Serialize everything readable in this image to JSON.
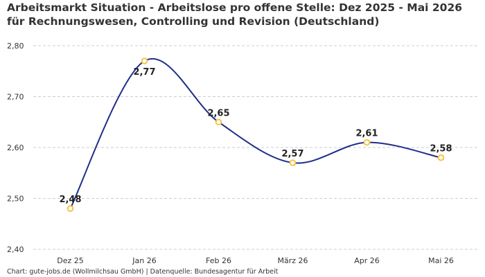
{
  "title": "Arbeitsmarkt Situation - Arbeitslose pro offene Stelle: Dez 2025 - Mai 2026 für Rechnungswesen, Controlling und Revision (Deutschland)",
  "footer": "Chart: gute-jobs.de (Wollmilchsau GmbH) | Datenquelle: Bundesagentur für Arbeit",
  "chart_data": {
    "type": "line",
    "title": "Arbeitsmarkt Situation - Arbeitslose pro offene Stelle: Dez 2025 - Mai 2026 für Rechnungswesen, Controlling und Revision (Deutschland)",
    "categories": [
      "Dez 25",
      "Jan 26",
      "Feb 26",
      "März 26",
      "Apr 26",
      "Mai 26"
    ],
    "values": [
      2.48,
      2.77,
      2.65,
      2.57,
      2.61,
      2.58
    ],
    "value_labels": [
      "2,48",
      "2,77",
      "2,65",
      "2,57",
      "2,61",
      "2,58"
    ],
    "y_ticks": [
      "2,40",
      "2,50",
      "2,60",
      "2,70",
      "2,80"
    ],
    "y_tick_values": [
      2.4,
      2.5,
      2.6,
      2.7,
      2.8
    ],
    "ylim": [
      2.4,
      2.8
    ],
    "xlabel": "",
    "ylabel": "",
    "grid": true,
    "line_color": "#1f2d8a",
    "marker_color": "#f5c542",
    "grid_color": "#cccccc"
  }
}
